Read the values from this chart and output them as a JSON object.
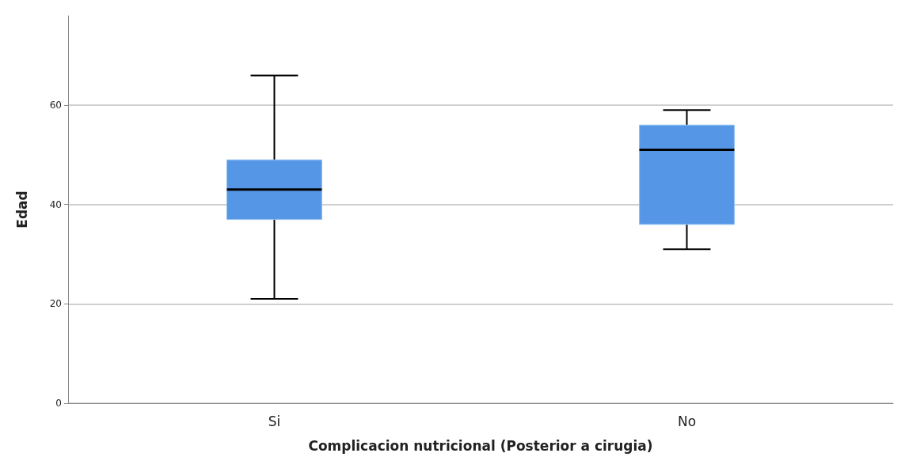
{
  "chart_data": {
    "type": "box",
    "xlabel": "Complicacion nutricional (Posterior a cirugia)",
    "ylabel": "Edad",
    "categories": [
      "Si",
      "No"
    ],
    "boxes": [
      {
        "low": 21,
        "q1": 37,
        "median": 43,
        "q3": 49,
        "high": 66
      },
      {
        "low": 31,
        "q1": 36,
        "median": 51,
        "q3": 56,
        "high": 59
      }
    ],
    "color": "#5596e6",
    "ylim": [
      0,
      78
    ],
    "yticks": [
      0,
      20,
      40,
      60
    ],
    "grid": "y"
  }
}
